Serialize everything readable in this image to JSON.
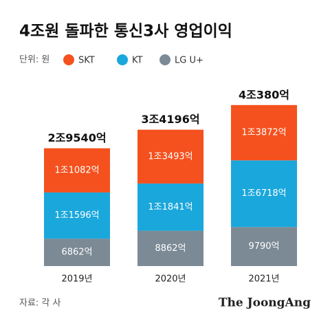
{
  "chart_data": {
    "type": "stacked-bar",
    "title": "4조원 돌파한 통신3사 영업이익",
    "unit_label": "단위: 원",
    "categories": [
      "2019년",
      "2020년",
      "2021년"
    ],
    "series": [
      {
        "name": "SKT",
        "color": "#f4511e",
        "values": [
          11082,
          13493,
          13872
        ],
        "value_labels": [
          "1조1082억",
          "1조3493억",
          "1조3872억"
        ]
      },
      {
        "name": "KT",
        "color": "#1aa7dc",
        "values": [
          11596,
          11841,
          16718
        ],
        "value_labels": [
          "1조1596억",
          "1조1841억",
          "1조6718억"
        ]
      },
      {
        "name": "LG U+",
        "color": "#7b8a95",
        "values": [
          6862,
          8862,
          9790
        ],
        "value_labels": [
          "6862억",
          "8862억",
          "9790억"
        ]
      }
    ],
    "totals": [
      29540,
      34196,
      40380
    ],
    "total_labels": [
      "2조9540억",
      "3조4196억",
      "4조380억"
    ],
    "source": "자료: 각 사",
    "brand": "The JoongAng"
  }
}
